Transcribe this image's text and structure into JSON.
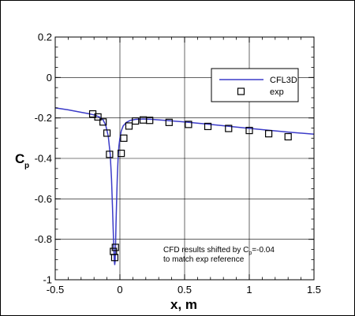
{
  "chart_data": {
    "type": "line",
    "xlabel": "x, m",
    "ylabel_main": "C",
    "ylabel_sub": "p",
    "xlim": [
      -0.5,
      1.5
    ],
    "ylim": [
      -1,
      0.2
    ],
    "grid": true,
    "x_ticks": [
      "-0.5",
      "0",
      "0.5",
      "1",
      "1.5"
    ],
    "x_tick_values": [
      -0.5,
      0,
      0.5,
      1,
      1.5
    ],
    "y_ticks": [
      "0.2",
      "0",
      "-0.2",
      "-0.4",
      "-0.6",
      "-0.8",
      "-1"
    ],
    "y_tick_values": [
      0.2,
      0,
      -0.2,
      -0.4,
      -0.6,
      -0.8,
      -1
    ],
    "legend_position": "top-right",
    "series": [
      {
        "name": "CFL3D",
        "style": "line",
        "color": "#3b3bc8",
        "x": [
          -0.5,
          -0.4,
          -0.3,
          -0.25,
          -0.2,
          -0.16,
          -0.13,
          -0.11,
          -0.09,
          -0.075,
          -0.065,
          -0.058,
          -0.052,
          -0.047,
          -0.043,
          -0.04,
          -0.037,
          -0.034,
          -0.03,
          -0.025,
          -0.02,
          -0.014,
          -0.008,
          0.0,
          0.01,
          0.025,
          0.05,
          0.08,
          0.12,
          0.18,
          0.25,
          0.35,
          0.5,
          0.7,
          0.9,
          1.1,
          1.3,
          1.5
        ],
        "y": [
          -0.15,
          -0.16,
          -0.172,
          -0.178,
          -0.185,
          -0.195,
          -0.21,
          -0.235,
          -0.29,
          -0.38,
          -0.5,
          -0.63,
          -0.75,
          -0.85,
          -0.91,
          -0.925,
          -0.91,
          -0.84,
          -0.72,
          -0.6,
          -0.49,
          -0.4,
          -0.34,
          -0.3,
          -0.265,
          -0.24,
          -0.222,
          -0.212,
          -0.207,
          -0.205,
          -0.207,
          -0.212,
          -0.22,
          -0.232,
          -0.245,
          -0.258,
          -0.27,
          -0.28
        ]
      },
      {
        "name": "exp",
        "style": "marker",
        "color": "#000000",
        "x": [
          -0.21,
          -0.17,
          -0.13,
          -0.1,
          -0.08,
          -0.05,
          -0.04,
          -0.035,
          0.01,
          0.03,
          0.07,
          0.12,
          0.18,
          0.23,
          0.38,
          0.53,
          0.68,
          0.84,
          1.0,
          1.15,
          1.3
        ],
        "y": [
          -0.18,
          -0.195,
          -0.22,
          -0.275,
          -0.38,
          -0.86,
          -0.89,
          -0.84,
          -0.375,
          -0.3,
          -0.24,
          -0.215,
          -0.21,
          -0.212,
          -0.222,
          -0.232,
          -0.242,
          -0.252,
          -0.262,
          -0.278,
          -0.293
        ]
      }
    ],
    "annotation_lines": [
      "CFD results shifted by C",
      "p",
      "=-0.04",
      "to match exp reference"
    ]
  }
}
